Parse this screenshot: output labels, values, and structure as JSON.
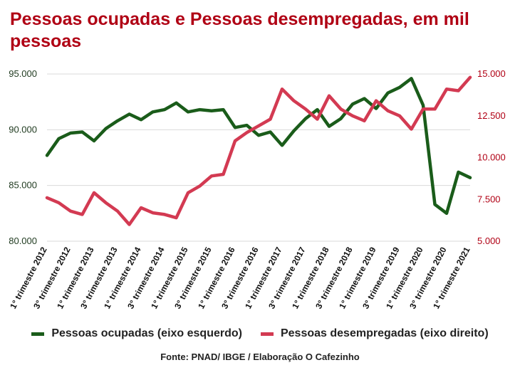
{
  "chart_data": {
    "type": "line",
    "title": "Pessoas ocupadas e Pessoas desempregadas, em mil pessoas",
    "source": "Fonte: PNAD/ IBGE / Elaboração O Cafezinho",
    "x": [
      "1º trim 2012",
      "2º trim 2012",
      "3º trim 2012",
      "4º trim 2012",
      "1º trim 2013",
      "2º trim 2013",
      "3º trim 2013",
      "4º trim 2013",
      "1º trim 2014",
      "2º trim 2014",
      "3º trim 2014",
      "4º trim 2014",
      "1º trim 2015",
      "2º trim 2015",
      "3º trim 2015",
      "4º trim 2015",
      "1º trim 2016",
      "2º trim 2016",
      "3º trim 2016",
      "4º trim 2016",
      "1º trim 2017",
      "2º trim 2017",
      "3º trim 2017",
      "4º trim 2017",
      "1º trim 2018",
      "2º trim 2018",
      "3º trim 2018",
      "4º trim 2018",
      "1º trim 2019",
      "2º trim 2019",
      "3º trim 2019",
      "4º trim 2019",
      "1º trim 2020",
      "2º trim 2020",
      "3º trim 2020",
      "4º trim 2020",
      "1º trim 2021"
    ],
    "x_tick_labels": [
      "1° trimestre 2012",
      "3° trimestre 2012",
      "1° trimestre 2013",
      "3° trimestre 2013",
      "1° trimestre 2014",
      "3° trimestre 2014",
      "1° trimestre 2015",
      "3° trimestre 2015",
      "1° trimestre 2016",
      "3° trimestre 2016",
      "1° trimestre 2017",
      "3° trimestre 2017",
      "1° trimestre 2018",
      "3° trimestre 2018",
      "1° trimestre 2019",
      "3° trimestre 2019",
      "1° trimestre 2020",
      "3° trimestre 2020",
      "1° trimestre 2021"
    ],
    "y_left": {
      "ylim": [
        80000,
        95000
      ],
      "ticks": [
        "80.000",
        "85.000",
        "90.000",
        "95.000"
      ]
    },
    "y_right": {
      "ylim": [
        5000,
        15000
      ],
      "ticks": [
        "5.000",
        "7.500",
        "10.000",
        "12.500",
        "15.000"
      ]
    },
    "series": [
      {
        "name": "Pessoas ocupadas (eixo esquerdo)",
        "axis": "left",
        "color": "#1a5c1a",
        "values": [
          87700,
          89200,
          89700,
          89800,
          89000,
          90100,
          90800,
          91400,
          90900,
          91600,
          91800,
          92400,
          91600,
          91800,
          91700,
          91800,
          90200,
          90400,
          89500,
          89800,
          88600,
          89900,
          91000,
          91800,
          90300,
          91000,
          92300,
          92800,
          91900,
          93300,
          93800,
          94600,
          92200,
          83300,
          82500,
          86200,
          85700
        ]
      },
      {
        "name": "Pessoas desempregadas (eixo direito)",
        "axis": "right",
        "color": "#d33a52",
        "values": [
          7600,
          7300,
          6800,
          6600,
          7900,
          7300,
          6800,
          6000,
          7000,
          6700,
          6600,
          6400,
          7900,
          8300,
          8900,
          9000,
          11000,
          11500,
          11900,
          12300,
          14100,
          13400,
          12900,
          12300,
          13700,
          12900,
          12500,
          12200,
          13400,
          12800,
          12500,
          11700,
          12900,
          12900,
          14100,
          14000,
          14800
        ]
      }
    ],
    "legend_position": "bottom",
    "grid": "horizontal"
  }
}
